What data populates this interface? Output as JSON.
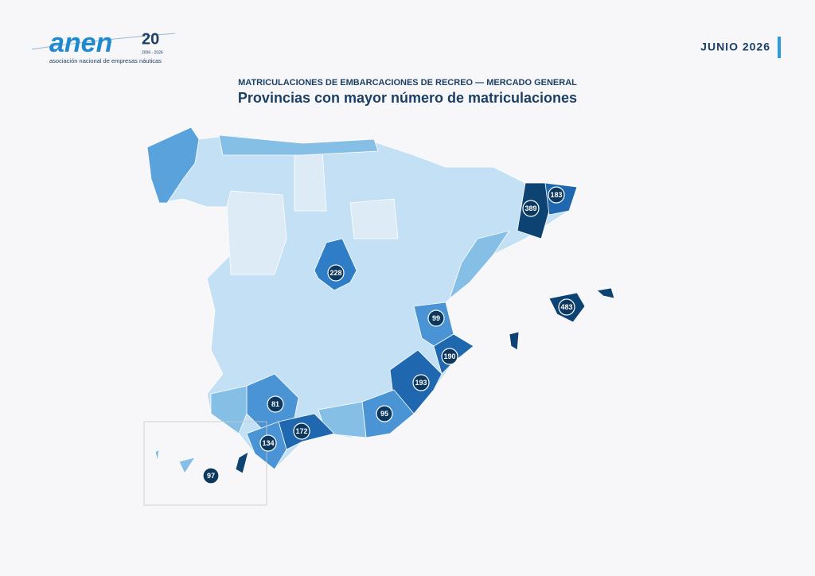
{
  "logo": {
    "name": "anen",
    "badge": "20",
    "years": "2006 - 2026",
    "tagline": "asociación nacional de empresas náuticas"
  },
  "date": "JUNIO 2026",
  "header": {
    "subtitle": "MATRICULACIONES DE EMBARCACIONES DE RECREO — MERCADO GENERAL",
    "title": "Provincias con mayor número de matriculaciones"
  },
  "markers": [
    {
      "label": 183
    },
    {
      "label": 389
    },
    {
      "label": 228
    },
    {
      "label": 483
    },
    {
      "label": 99
    },
    {
      "label": 190
    },
    {
      "label": 193
    },
    {
      "label": 81
    },
    {
      "label": 95
    },
    {
      "label": 172
    },
    {
      "label": 134
    },
    {
      "label": 97
    }
  ]
}
